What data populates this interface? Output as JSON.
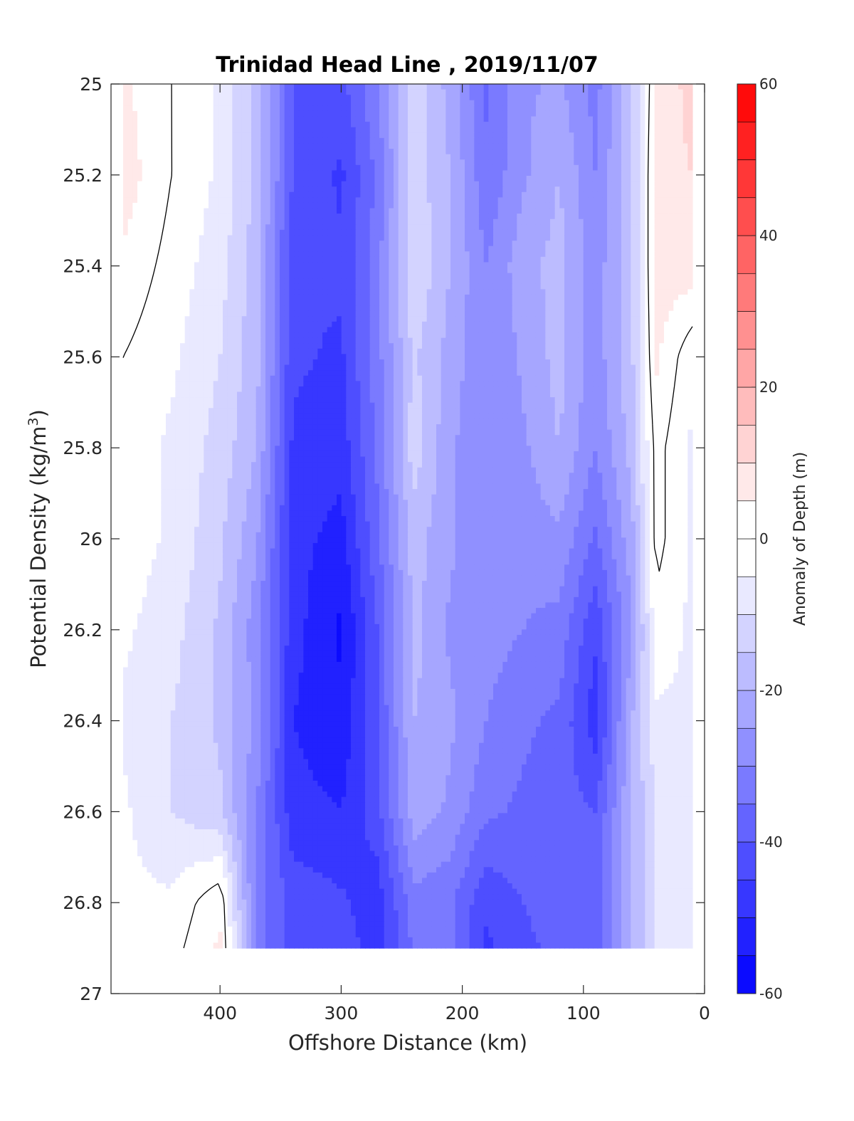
{
  "chart_data": {
    "type": "heatmap",
    "title": "Trinidad Head Line , 2019/11/07",
    "xlabel": "Offshore Distance (km)",
    "ylabel": "Potential Density (kg/m",
    "ylabel_superscript": "3",
    "ylabel_suffix": ")",
    "xlim": [
      490,
      0
    ],
    "x_reversed": true,
    "ylim": [
      25,
      27
    ],
    "y_reversed": true,
    "x_ticks": [
      400,
      300,
      200,
      100,
      0
    ],
    "x_tick_labels": [
      "400",
      "300",
      "200",
      "100",
      "0"
    ],
    "y_ticks": [
      25,
      25.2,
      25.4,
      25.6,
      25.8,
      26,
      26.2,
      26.4,
      26.6,
      26.8,
      27
    ],
    "y_tick_labels": [
      "25",
      "25.2",
      "25.4",
      "25.6",
      "25.8",
      "26",
      "26.2",
      "26.4",
      "26.6",
      "26.8",
      "27"
    ],
    "colorbar": {
      "label": "Anomaly of Depth (m)",
      "range": [
        -60,
        60
      ],
      "step": 5,
      "ticks": [
        60,
        40,
        20,
        0,
        -20,
        -40,
        -60
      ],
      "tick_labels": [
        "60",
        "40",
        "20",
        "0",
        "-20",
        "-40",
        "-60"
      ],
      "colormap": "blue-white-red",
      "min_color": "#0000ff",
      "zero_color": "#ffffff",
      "max_color": "#ff0000"
    },
    "contour_line_level": 0,
    "data_extent": {
      "x": [
        480,
        10
      ],
      "y": [
        25,
        26.9
      ]
    },
    "x": [
      480,
      440,
      400,
      370,
      340,
      300,
      270,
      240,
      210,
      180,
      150,
      120,
      90,
      60,
      40,
      10
    ],
    "y": [
      25,
      25.2,
      25.4,
      25.6,
      25.8,
      26,
      26.2,
      26.4,
      26.6,
      26.8,
      26.9
    ],
    "z": [
      [
        6,
        0,
        -6,
        -16,
        -40,
        -42,
        -30,
        -12,
        -22,
        -36,
        -26,
        -24,
        -32,
        -16,
        6,
        12
      ],
      [
        8,
        0,
        -6,
        -16,
        -40,
        -46,
        -34,
        -12,
        -20,
        -34,
        -26,
        -20,
        -30,
        -16,
        8,
        10
      ],
      [
        4,
        -2,
        -8,
        -18,
        -44,
        -44,
        -32,
        -10,
        -20,
        -30,
        -22,
        -18,
        -28,
        -16,
        8,
        8
      ],
      [
        0,
        -4,
        -10,
        -18,
        -44,
        -46,
        -32,
        -14,
        -22,
        -30,
        -24,
        -18,
        -28,
        -16,
        6,
        -4
      ],
      [
        -2,
        -6,
        -12,
        -20,
        -46,
        -48,
        -34,
        -12,
        -24,
        -30,
        -26,
        -20,
        -30,
        -18,
        2,
        -6
      ],
      [
        -2,
        -6,
        -14,
        -24,
        -48,
        -52,
        -36,
        -18,
        -24,
        -30,
        -28,
        -26,
        -36,
        -22,
        2,
        -6
      ],
      [
        -4,
        -8,
        -16,
        -28,
        -48,
        -56,
        -40,
        -18,
        -26,
        -28,
        -30,
        -32,
        -44,
        -26,
        -2,
        -6
      ],
      [
        -6,
        -10,
        -16,
        -26,
        -50,
        -54,
        -40,
        -20,
        -24,
        -30,
        -34,
        -36,
        -48,
        -20,
        -6,
        -6
      ],
      [
        -4,
        -10,
        -14,
        -30,
        -48,
        -50,
        -42,
        -22,
        -26,
        -34,
        -36,
        -38,
        -40,
        -20,
        -10,
        -6
      ],
      [
        -4,
        -4,
        4,
        -32,
        -42,
        -44,
        -48,
        -32,
        -34,
        -44,
        -40,
        -36,
        -38,
        -20,
        -10,
        -8
      ],
      [
        -4,
        -2,
        6,
        -32,
        -42,
        -42,
        -48,
        -34,
        -34,
        -46,
        -42,
        -38,
        -38,
        -20,
        -10,
        -8
      ]
    ]
  }
}
